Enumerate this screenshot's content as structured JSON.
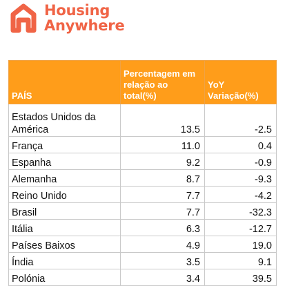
{
  "brand": {
    "line1": "Housing",
    "line2": "Anywhere",
    "logo_icon": "housing-anywhere-logo-icon",
    "color": "#f06446"
  },
  "table": {
    "header_color": "#ff9d1a",
    "headers": {
      "country": "PAÍS",
      "percentage": "Percentagem em relação ao total(%)",
      "yoy": "YoY Variação(%)"
    },
    "rows": [
      {
        "country": "Estados Unidos da América",
        "percentage": "13.5",
        "yoy": "-2.5"
      },
      {
        "country": "França",
        "percentage": "11.0",
        "yoy": "0.4"
      },
      {
        "country": "Espanha",
        "percentage": "9.2",
        "yoy": "-0.9"
      },
      {
        "country": "Alemanha",
        "percentage": "8.7",
        "yoy": "-9.3"
      },
      {
        "country": "Reino Unido",
        "percentage": "7.7",
        "yoy": "-4.2"
      },
      {
        "country": "Brasil",
        "percentage": "7.7",
        "yoy": "-32.3"
      },
      {
        "country": "Itália",
        "percentage": "6.3",
        "yoy": "-12.7"
      },
      {
        "country": "Países Baixos",
        "percentage": "4.9",
        "yoy": "19.0"
      },
      {
        "country": "Índia",
        "percentage": "3.5",
        "yoy": "9.1"
      },
      {
        "country": "Polónia",
        "percentage": "3.4",
        "yoy": "39.5"
      }
    ]
  }
}
